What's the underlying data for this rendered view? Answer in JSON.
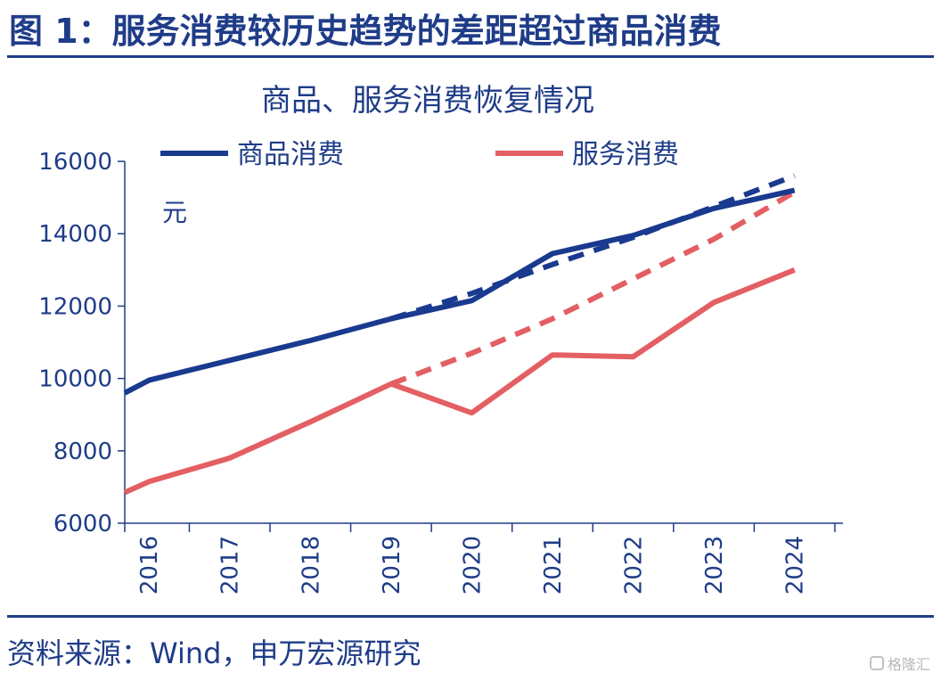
{
  "figure": {
    "heading": "图 1：服务消费较历史趋势的差距超过商品消费",
    "source": "资料来源：Wind，申万宏源研究",
    "watermark": "格隆汇"
  },
  "chart_data": {
    "type": "line",
    "title": "商品、服务消费恢复情况",
    "ylabel": "元",
    "xlabel": "",
    "x": [
      "2016",
      "2017",
      "2018",
      "2019",
      "2020",
      "2021",
      "2022",
      "2023",
      "2024"
    ],
    "ylim": [
      6000,
      16000
    ],
    "yticks": [
      6000,
      8000,
      10000,
      12000,
      14000,
      16000
    ],
    "x_start": 2015.7,
    "x_end": 2024.0,
    "legend_position": "top",
    "grid": false,
    "series": [
      {
        "name": "商品消费",
        "style": "solid",
        "color": "#1a3a8f",
        "points": [
          [
            2015.7,
            9600
          ],
          [
            2016,
            9950
          ],
          [
            2017,
            10500
          ],
          [
            2018,
            11050
          ],
          [
            2019,
            11650
          ],
          [
            2020,
            12150
          ],
          [
            2021,
            13450
          ],
          [
            2022,
            13950
          ],
          [
            2023,
            14700
          ],
          [
            2024,
            15200
          ]
        ]
      },
      {
        "name": "服务消费",
        "style": "solid",
        "color": "#e35f63",
        "points": [
          [
            2015.7,
            6850
          ],
          [
            2016,
            7150
          ],
          [
            2017,
            7800
          ],
          [
            2018,
            8800
          ],
          [
            2019,
            9850
          ],
          [
            2020,
            9050
          ],
          [
            2021,
            10650
          ],
          [
            2022,
            10600
          ],
          [
            2023,
            12100
          ],
          [
            2024,
            13000
          ]
        ]
      },
      {
        "style": "dashed",
        "color": "#1a3a8f",
        "points": [
          [
            2019,
            11650
          ],
          [
            2020,
            12350
          ],
          [
            2021,
            13150
          ],
          [
            2022,
            13900
          ],
          [
            2023,
            14750
          ],
          [
            2024,
            15600
          ]
        ]
      },
      {
        "style": "dashed",
        "color": "#e35f63",
        "points": [
          [
            2019,
            9850
          ],
          [
            2020,
            10700
          ],
          [
            2021,
            11650
          ],
          [
            2022,
            12750
          ],
          [
            2023,
            13850
          ],
          [
            2024,
            15150
          ]
        ]
      }
    ]
  }
}
